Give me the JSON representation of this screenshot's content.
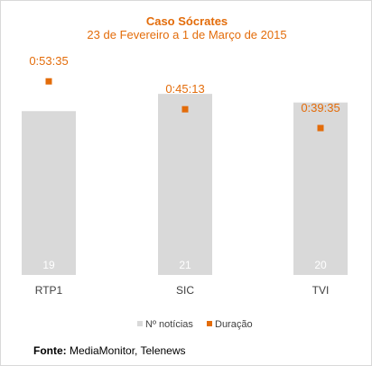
{
  "chart_data": {
    "type": "bar",
    "title": "Caso Sócrates",
    "subtitle": "23 de Fevereiro a 1 de Março de 2015",
    "categories": [
      "RTP1",
      "SIC",
      "TVI"
    ],
    "series": [
      {
        "name": "Nº notícias",
        "values": [
          19,
          21,
          20
        ],
        "color": "#d9d9d9"
      },
      {
        "name": "Duração",
        "values": [
          "0:53:35",
          "0:45:13",
          "0:39:35"
        ],
        "color": "#e36c0a",
        "marker": "square"
      }
    ],
    "ylim": [
      0,
      23
    ],
    "legend_position": "bottom",
    "grid": false
  },
  "source": {
    "label": "Fonte:",
    "text": "MediaMonitor, Telenews"
  },
  "colors": {
    "accent": "#e36c0a",
    "bar": "#d9d9d9",
    "bar_label": "#ffffff",
    "axis_text": "#404040"
  }
}
